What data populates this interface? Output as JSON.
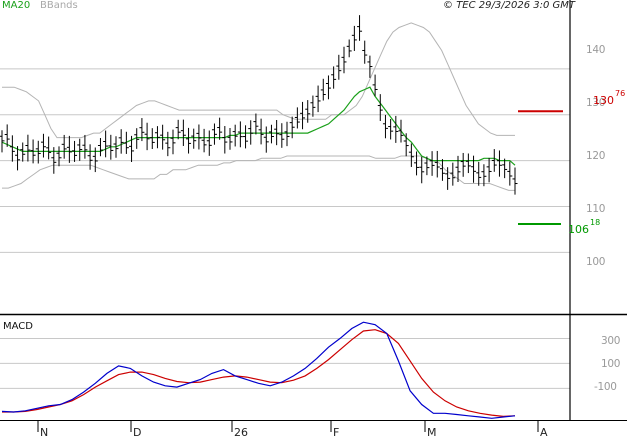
{
  "header": {
    "ma_label": "MA20",
    "bbands_label": "BBands",
    "copyright": "© TEC 29/3/2026 3:0 GMT"
  },
  "macd_panel": {
    "title": "MACD"
  },
  "colors": {
    "price_bars": "#000000",
    "ma20": "#1aa01a",
    "bbands": "#b4b4b4",
    "resistance": "#cc0000",
    "support": "#009900",
    "macd_line": "#0000cc",
    "signal_line": "#cc0000",
    "grid": "#c8c8c8",
    "panel_border": "#000000"
  },
  "levels": {
    "resistance": {
      "main": "130",
      "frac": "76",
      "value": 130.76
    },
    "support": {
      "main": "106",
      "frac": "18",
      "value": 106.18
    }
  },
  "chart_data": [
    {
      "type": "ohlc",
      "title": "",
      "series": [
        {
          "name": "MA20",
          "values": [
            124,
            123.5,
            123,
            122.5,
            122,
            122,
            122,
            122,
            122,
            122,
            122,
            122,
            122,
            122,
            122,
            122,
            122,
            122,
            122,
            122,
            122.5,
            123,
            123,
            123.5,
            124,
            124.5,
            125,
            125,
            125,
            125,
            125,
            125,
            125,
            125,
            125,
            125,
            125,
            125,
            125,
            125,
            125,
            125,
            125,
            125,
            125.5,
            125.5,
            126,
            126,
            126,
            126,
            126,
            126,
            126,
            126,
            126,
            126,
            126,
            126,
            126,
            126,
            126.5,
            127,
            127.5,
            128,
            129,
            130,
            131,
            132.5,
            134,
            135,
            135.5,
            136,
            134,
            132.5,
            131,
            129.5,
            128,
            126.5,
            125,
            124,
            122.5,
            121,
            120.5,
            120,
            120,
            120,
            120,
            120,
            120,
            120,
            120,
            120,
            120,
            120.5,
            120.5,
            120.5,
            120,
            120,
            120,
            119
          ]
        },
        {
          "name": "BBands upper",
          "values": [
            136,
            136,
            136,
            135.5,
            135,
            134,
            133,
            130,
            127,
            125,
            125,
            125,
            125,
            125,
            125.5,
            126,
            126,
            127,
            128,
            129,
            130,
            131,
            132,
            132.5,
            133,
            133,
            132.5,
            132,
            131.5,
            131,
            131,
            131,
            131,
            131,
            131,
            131,
            131,
            131,
            131,
            131,
            131,
            131,
            131,
            131,
            131,
            131,
            130,
            129.5,
            129,
            129,
            129,
            129,
            129,
            129,
            130,
            130,
            130,
            131,
            132,
            134,
            137,
            140,
            143,
            146,
            148,
            149,
            149.5,
            150,
            149.5,
            149,
            148,
            146,
            144,
            141,
            138,
            135,
            132,
            130,
            128,
            127,
            126,
            125.5,
            125.5,
            125.5,
            125.5
          ]
        },
        {
          "name": "BBands lower",
          "values": [
            114,
            114,
            114.5,
            115,
            116,
            117,
            118,
            118.5,
            119,
            119,
            119,
            119,
            119,
            119,
            119,
            118.5,
            118,
            117.5,
            117,
            116.5,
            116,
            116,
            116,
            116,
            116,
            117,
            117,
            118,
            118,
            118,
            118.5,
            119,
            119,
            119,
            119,
            119.5,
            119.5,
            120,
            120,
            120,
            120,
            120.5,
            120.5,
            120.5,
            120.5,
            121,
            121,
            121,
            121,
            121,
            121,
            121,
            121,
            121,
            121,
            121,
            121,
            121,
            121,
            120.5,
            120.5,
            120.5,
            120.5,
            121,
            121,
            121,
            121,
            120.5,
            120,
            119.5,
            118,
            117,
            116,
            115,
            115,
            115,
            115,
            115,
            114.5,
            114,
            113.5,
            113.5
          ]
        }
      ],
      "y_ticks": [
        "140",
        "130",
        "120",
        "110",
        "100"
      ],
      "x_ticks": [
        "N",
        "D",
        "26",
        "F",
        "M",
        "A"
      ],
      "ylim": [
        87,
        155
      ]
    },
    {
      "type": "line",
      "title": "MACD",
      "series": [
        {
          "name": "MACD",
          "values": [
            -285,
            -290,
            -280,
            -260,
            -240,
            -230,
            -190,
            -130,
            -60,
            20,
            80,
            60,
            0,
            -50,
            -80,
            -90,
            -60,
            -30,
            20,
            50,
            0,
            -30,
            -60,
            -80,
            -50,
            0,
            60,
            140,
            230,
            300,
            380,
            430,
            410,
            340,
            120,
            -120,
            -230,
            -300,
            -300,
            -310,
            -320,
            -330,
            -340,
            -330,
            -320
          ]
        },
        {
          "name": "Signal",
          "values": [
            -290,
            -290,
            -285,
            -270,
            -250,
            -230,
            -200,
            -150,
            -90,
            -40,
            10,
            30,
            30,
            10,
            -20,
            -45,
            -55,
            -50,
            -30,
            -10,
            0,
            -10,
            -30,
            -50,
            -55,
            -35,
            0,
            60,
            130,
            210,
            290,
            360,
            370,
            340,
            260,
            120,
            -20,
            -130,
            -200,
            -250,
            -280,
            -300,
            -315,
            -325,
            -320
          ]
        }
      ],
      "y_ticks": [
        "300",
        "100",
        "-100"
      ],
      "ylim": [
        -370,
        480
      ]
    }
  ]
}
